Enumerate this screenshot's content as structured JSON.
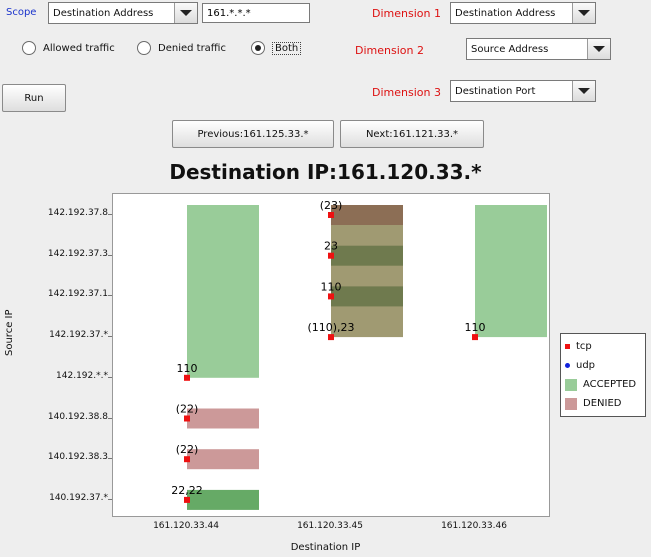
{
  "controls": {
    "scope_label": "Scope",
    "scope_value": "Destination Address",
    "scope_filter": "161.*.*.*",
    "dim1_label": "Dimension 1",
    "dim1_value": "Destination Address",
    "dim2_label": "Dimension 2",
    "dim2_value": "Source Address",
    "dim3_label": "Dimension 3",
    "dim3_value": "Destination Port",
    "radio_allowed": "Allowed traffic",
    "radio_denied": "Denied traffic",
    "radio_both": "Both",
    "radio_selected": "Both",
    "run_label": "Run",
    "prev_label": "Previous:161.125.33.*",
    "next_label": "Next:161.121.33.*"
  },
  "chart_data": {
    "type": "heatmap",
    "title": "Destination IP:161.120.33.*",
    "xlabel": "Destination IP",
    "ylabel": "Source IP",
    "x_categories": [
      "161.120.33.44",
      "161.120.33.45",
      "161.120.33.46"
    ],
    "y_categories": [
      "142.192.37.8",
      "142.192.37.3",
      "142.192.37.1",
      "142.192.37.*",
      "142.192.*.*",
      "140.192.38.8",
      "140.192.38.3",
      "140.192.37.*"
    ],
    "colors": {
      "tcp": "#ee1111",
      "udp": "#1122dd",
      "accepted": "#99cc99",
      "denied": "#cc9999",
      "accepted_dark": "#66aa66",
      "mixed": "#a09a72",
      "mixed_dark": "#6f7a4e",
      "brown": "#8c6e55"
    },
    "cells": [
      {
        "x": "161.120.33.44",
        "y_from": "142.192.*.*",
        "y_to": "142.192.37.8",
        "status": "accepted"
      },
      {
        "x": "161.120.33.44",
        "y": "140.192.38.8",
        "status": "denied"
      },
      {
        "x": "161.120.33.44",
        "y": "140.192.38.3",
        "status": "denied"
      },
      {
        "x": "161.120.33.44",
        "y": "140.192.37.*",
        "status": "accepted"
      },
      {
        "x": "161.120.33.45",
        "y_from": "142.192.37.*",
        "y_to": "142.192.37.8",
        "status": "mixed"
      },
      {
        "x": "161.120.33.46",
        "y_from": "142.192.37.*",
        "y_to": "142.192.37.8",
        "status": "accepted"
      }
    ],
    "points": [
      {
        "x": "161.120.33.44",
        "y": "142.192.*.*",
        "protocol": "tcp",
        "label": "110"
      },
      {
        "x": "161.120.33.44",
        "y": "140.192.38.8",
        "protocol": "tcp",
        "label": "(22)"
      },
      {
        "x": "161.120.33.44",
        "y": "140.192.38.3",
        "protocol": "tcp",
        "label": "(22)"
      },
      {
        "x": "161.120.33.44",
        "y": "140.192.37.*",
        "protocol": "tcp",
        "label": "22,22"
      },
      {
        "x": "161.120.33.45",
        "y": "142.192.37.8",
        "protocol": "tcp",
        "label": "(23)"
      },
      {
        "x": "161.120.33.45",
        "y": "142.192.37.3",
        "protocol": "tcp",
        "label": "23"
      },
      {
        "x": "161.120.33.45",
        "y": "142.192.37.1",
        "protocol": "tcp",
        "label": "110"
      },
      {
        "x": "161.120.33.45",
        "y": "142.192.37.*",
        "protocol": "tcp",
        "label": "(110),23"
      },
      {
        "x": "161.120.33.46",
        "y": "142.192.37.*",
        "protocol": "tcp",
        "label": "110"
      }
    ],
    "legend": [
      "tcp",
      "udp",
      "ACCEPTED",
      "DENIED"
    ],
    "legend_placement": "right"
  }
}
